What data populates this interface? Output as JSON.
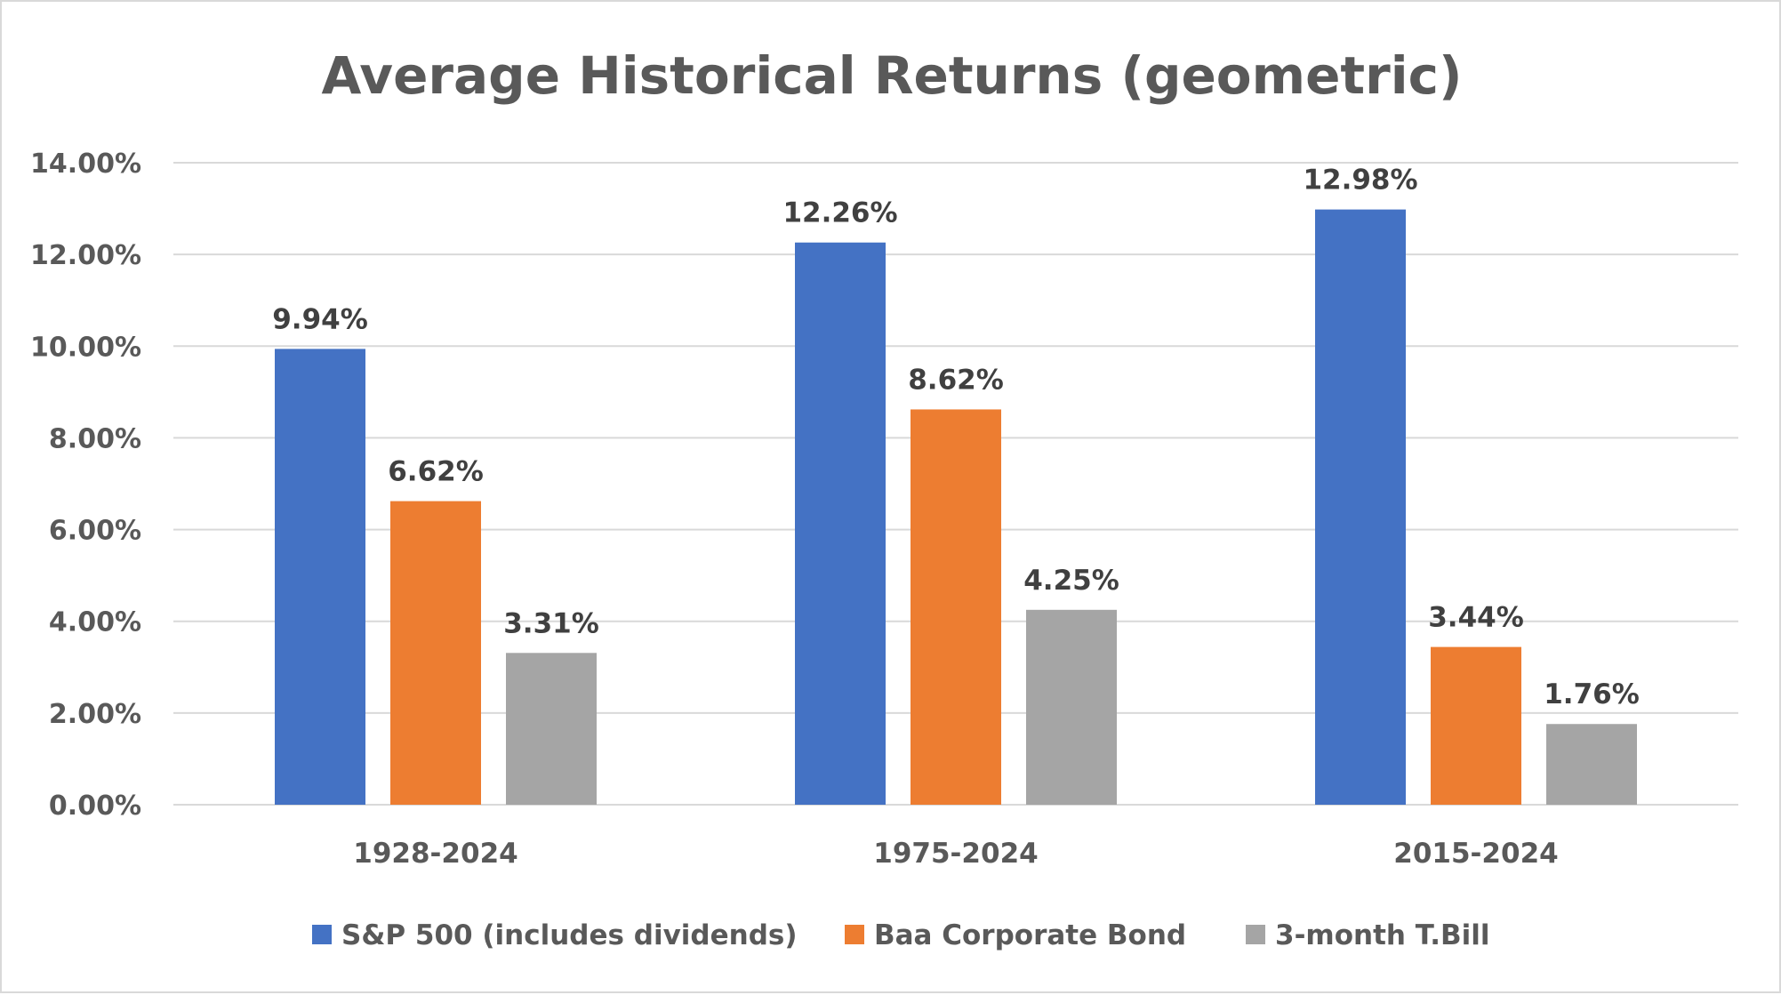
{
  "chart_data": {
    "type": "bar",
    "title": "Average Historical Returns (geometric)",
    "xlabel": "",
    "ylabel": "",
    "categories": [
      "1928-2024",
      "1975-2024",
      "2015-2024"
    ],
    "series": [
      {
        "name": "S&P 500 (includes dividends)",
        "color": "#4472c4",
        "values": [
          9.94,
          12.26,
          12.98
        ],
        "labels": [
          "9.94%",
          "12.26%",
          "12.98%"
        ]
      },
      {
        "name": "Baa Corporate Bond",
        "color": "#ed7d31",
        "values": [
          6.62,
          8.62,
          3.44
        ],
        "labels": [
          "6.62%",
          "8.62%",
          "3.44%"
        ]
      },
      {
        "name": "3-month T.Bill",
        "color": "#a5a5a5",
        "values": [
          3.31,
          4.25,
          1.76
        ],
        "labels": [
          "3.31%",
          "4.25%",
          "1.76%"
        ]
      }
    ],
    "ylim": [
      0,
      14
    ],
    "yticks": [
      0,
      2,
      4,
      6,
      8,
      10,
      12,
      14
    ],
    "ytick_labels": [
      "0.00%",
      "2.00%",
      "4.00%",
      "6.00%",
      "8.00%",
      "10.00%",
      "12.00%",
      "14.00%"
    ],
    "grid": true,
    "legend_position": "bottom"
  }
}
